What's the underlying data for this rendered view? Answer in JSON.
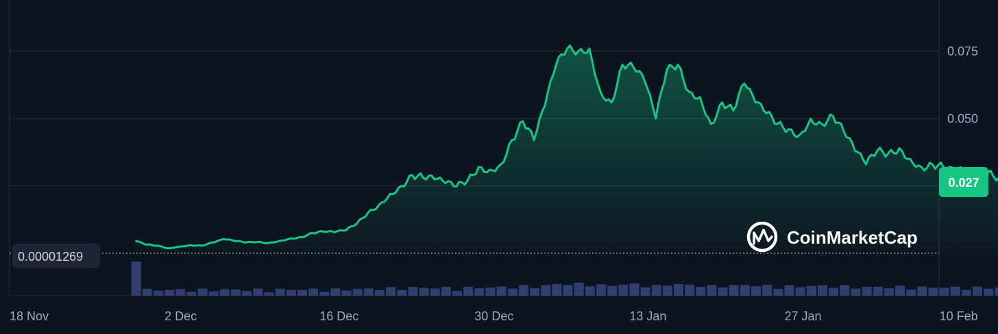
{
  "chart_data": {
    "type": "area",
    "colors": {
      "line": "#16c784",
      "volume": "#3a4a7e",
      "background": "#0d1421",
      "grid": "#2b3242"
    },
    "x_ticks": [
      "18 Nov",
      "2 Dec",
      "16 Dec",
      "30 Dec",
      "13 Jan",
      "27 Jan",
      "10 Feb"
    ],
    "y_ticks": [
      "0.075",
      "0.050"
    ],
    "ylim": [
      0,
      0.092
    ],
    "price_series": [
      {
        "x": "2024-11-29",
        "y": 0.0045
      },
      {
        "x": "2024-11-30",
        "y": 0.0032
      },
      {
        "x": "2024-12-01",
        "y": 0.0028
      },
      {
        "x": "2024-12-02",
        "y": 0.0018
      },
      {
        "x": "2024-12-03",
        "y": 0.0025
      },
      {
        "x": "2024-12-04",
        "y": 0.003
      },
      {
        "x": "2024-12-05",
        "y": 0.0028
      },
      {
        "x": "2024-12-06",
        "y": 0.004
      },
      {
        "x": "2024-12-07",
        "y": 0.0052
      },
      {
        "x": "2024-12-08",
        "y": 0.0045
      },
      {
        "x": "2024-12-09",
        "y": 0.004
      },
      {
        "x": "2024-12-10",
        "y": 0.0042
      },
      {
        "x": "2024-12-11",
        "y": 0.0038
      },
      {
        "x": "2024-12-12",
        "y": 0.0046
      },
      {
        "x": "2024-12-13",
        "y": 0.0055
      },
      {
        "x": "2024-12-14",
        "y": 0.006
      },
      {
        "x": "2024-12-15",
        "y": 0.0075
      },
      {
        "x": "2024-12-16",
        "y": 0.008
      },
      {
        "x": "2024-12-17",
        "y": 0.0078
      },
      {
        "x": "2024-12-18",
        "y": 0.0085
      },
      {
        "x": "2024-12-19",
        "y": 0.011
      },
      {
        "x": "2024-12-20",
        "y": 0.015
      },
      {
        "x": "2024-12-21",
        "y": 0.018
      },
      {
        "x": "2024-12-22",
        "y": 0.022
      },
      {
        "x": "2024-12-23",
        "y": 0.025
      },
      {
        "x": "2024-12-24",
        "y": 0.029
      },
      {
        "x": "2024-12-25",
        "y": 0.028
      },
      {
        "x": "2024-12-26",
        "y": 0.0275
      },
      {
        "x": "2024-12-27",
        "y": 0.026
      },
      {
        "x": "2024-12-28",
        "y": 0.0248
      },
      {
        "x": "2024-12-29",
        "y": 0.027
      },
      {
        "x": "2024-12-30",
        "y": 0.032
      },
      {
        "x": "2024-12-31",
        "y": 0.031
      },
      {
        "x": "2025-01-01",
        "y": 0.033
      },
      {
        "x": "2025-01-02",
        "y": 0.042
      },
      {
        "x": "2025-01-03",
        "y": 0.049
      },
      {
        "x": "2025-01-04",
        "y": 0.042
      },
      {
        "x": "2025-01-05",
        "y": 0.055
      },
      {
        "x": "2025-01-06",
        "y": 0.07
      },
      {
        "x": "2025-01-07",
        "y": 0.076
      },
      {
        "x": "2025-01-08",
        "y": 0.075
      },
      {
        "x": "2025-01-09",
        "y": 0.076
      },
      {
        "x": "2025-01-10",
        "y": 0.06
      },
      {
        "x": "2025-01-11",
        "y": 0.056
      },
      {
        "x": "2025-01-12",
        "y": 0.07
      },
      {
        "x": "2025-01-13",
        "y": 0.069
      },
      {
        "x": "2025-01-14",
        "y": 0.064
      },
      {
        "x": "2025-01-15",
        "y": 0.05
      },
      {
        "x": "2025-01-16",
        "y": 0.068
      },
      {
        "x": "2025-01-17",
        "y": 0.07
      },
      {
        "x": "2025-01-18",
        "y": 0.06
      },
      {
        "x": "2025-01-19",
        "y": 0.058
      },
      {
        "x": "2025-01-20",
        "y": 0.048
      },
      {
        "x": "2025-01-21",
        "y": 0.056
      },
      {
        "x": "2025-01-22",
        "y": 0.053
      },
      {
        "x": "2025-01-23",
        "y": 0.063
      },
      {
        "x": "2025-01-24",
        "y": 0.056
      },
      {
        "x": "2025-01-25",
        "y": 0.052
      },
      {
        "x": "2025-01-26",
        "y": 0.048
      },
      {
        "x": "2025-01-27",
        "y": 0.046
      },
      {
        "x": "2025-01-28",
        "y": 0.044
      },
      {
        "x": "2025-01-29",
        "y": 0.05
      },
      {
        "x": "2025-01-30",
        "y": 0.048
      },
      {
        "x": "2025-01-31",
        "y": 0.051
      },
      {
        "x": "2025-02-01",
        "y": 0.045
      },
      {
        "x": "2025-02-02",
        "y": 0.038
      },
      {
        "x": "2025-02-03",
        "y": 0.033
      },
      {
        "x": "2025-02-04",
        "y": 0.038
      },
      {
        "x": "2025-02-05",
        "y": 0.037
      },
      {
        "x": "2025-02-06",
        "y": 0.039
      },
      {
        "x": "2025-02-07",
        "y": 0.035
      },
      {
        "x": "2025-02-08",
        "y": 0.032
      },
      {
        "x": "2025-02-09",
        "y": 0.033
      },
      {
        "x": "2025-02-10",
        "y": 0.032
      },
      {
        "x": "2025-02-11",
        "y": 0.03
      },
      {
        "x": "2025-02-12",
        "y": 0.031
      },
      {
        "x": "2025-02-13",
        "y": 0.029
      },
      {
        "x": "2025-02-14",
        "y": 0.03
      },
      {
        "x": "2025-02-15",
        "y": 0.028
      },
      {
        "x": "2025-02-16",
        "y": 0.032
      },
      {
        "x": "2025-02-17",
        "y": 0.03
      },
      {
        "x": "2025-02-18",
        "y": 0.03
      },
      {
        "x": "2025-02-19",
        "y": 0.0285
      },
      {
        "x": "2025-02-20",
        "y": 0.027
      }
    ],
    "current_price_label": "0.027",
    "base_price_label": "0.00001269",
    "watermark": "CoinMarketCap"
  }
}
